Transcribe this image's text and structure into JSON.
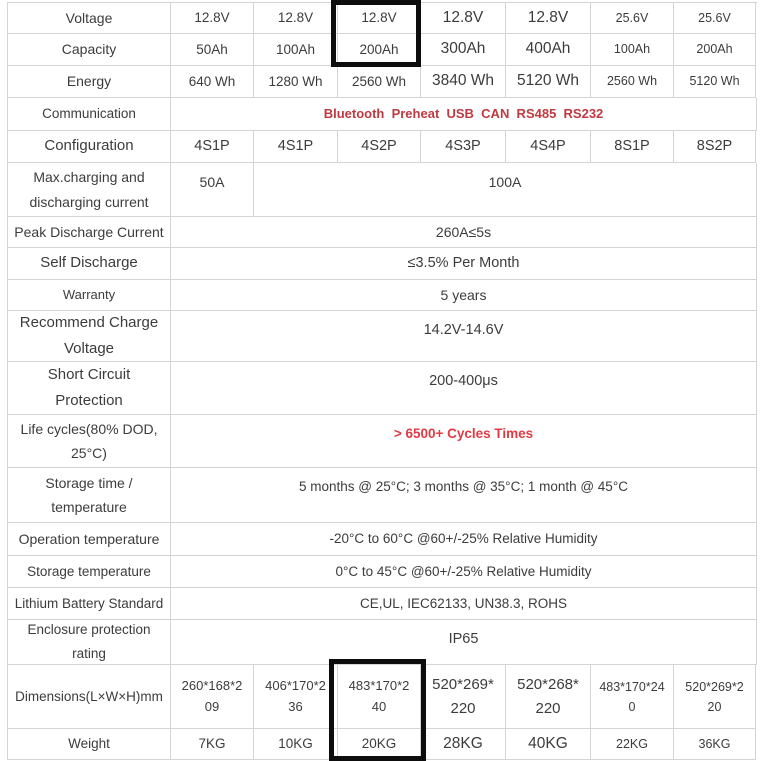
{
  "colors": {
    "text": "#3c3c3c",
    "border": "#d4d4d4",
    "communication_red": "#bf3a40",
    "cycles_red": "#e23a42",
    "highlight_box": "#0d0d0d"
  },
  "rows": {
    "voltage": {
      "label": "Voltage",
      "v": [
        "12.8V",
        "12.8V",
        "12.8V",
        "12.8V",
        "12.8V",
        "25.6V",
        "25.6V"
      ]
    },
    "capacity": {
      "label": "Capacity",
      "v": [
        "50Ah",
        "100Ah",
        "200Ah",
        "300Ah",
        "400Ah",
        "100Ah",
        "200Ah"
      ]
    },
    "energy": {
      "label": "Energy",
      "v": [
        "640 Wh",
        "1280 Wh",
        "2560 Wh",
        "3840 Wh",
        "5120 Wh",
        "2560 Wh",
        "5120 Wh"
      ]
    },
    "communication": {
      "label": "Communication",
      "value": "Bluetooth  Preheat  USB  CAN  RS485  RS232"
    },
    "configuration": {
      "label": "Configuration",
      "v": [
        "4S1P",
        "4S1P",
        "4S2P",
        "4S3P",
        "4S4P",
        "8S1P",
        "8S2P"
      ]
    },
    "max_current": {
      "label": "Max.charging and discharging current",
      "v1": "50A",
      "v2": "100A"
    },
    "peak_discharge": {
      "label": "Peak Discharge Current",
      "value": "260A≤5s"
    },
    "self_discharge": {
      "label": "Self Discharge",
      "value": "≤3.5% Per Month"
    },
    "warranty": {
      "label": "Warranty",
      "value": "5 years"
    },
    "recommend_charge": {
      "label": "Recommend Charge Voltage",
      "value": "14.2V-14.6V"
    },
    "short_circuit": {
      "label": "Short Circuit Protection",
      "value": "200-400μs"
    },
    "life_cycles": {
      "label": "Life cycles(80% DOD, 25°C)",
      "value": "> 6500+ Cycles Times"
    },
    "storage_time": {
      "label": "Storage time / temperature",
      "value": "5 months @ 25°C; 3 months @ 35°C; 1 month @ 45°C"
    },
    "operation_temp": {
      "label": "Operation temperature",
      "value": "-20°C to 60°C @60+/-25% Relative Humidity"
    },
    "storage_temp": {
      "label": "Storage temperature",
      "value": "0°C to 45°C @60+/-25% Relative Humidity"
    },
    "lithium_standard": {
      "label": "Lithium Battery Standard",
      "value": "CE,UL, IEC62133, UN38.3, ROHS"
    },
    "enclosure": {
      "label": "Enclosure protection rating",
      "value": "IP65"
    },
    "dimensions": {
      "label": "Dimensions(L×W×H)mm",
      "v": [
        "260*168*209",
        "406*170*236",
        "483*170*240",
        "520*269*220",
        "520*268*220",
        "483*170*240",
        "520*269*220"
      ]
    },
    "weight": {
      "label": "Weight",
      "v": [
        "7KG",
        "10KG",
        "20KG",
        "28KG",
        "40KG",
        "22KG",
        "36KG"
      ]
    }
  }
}
